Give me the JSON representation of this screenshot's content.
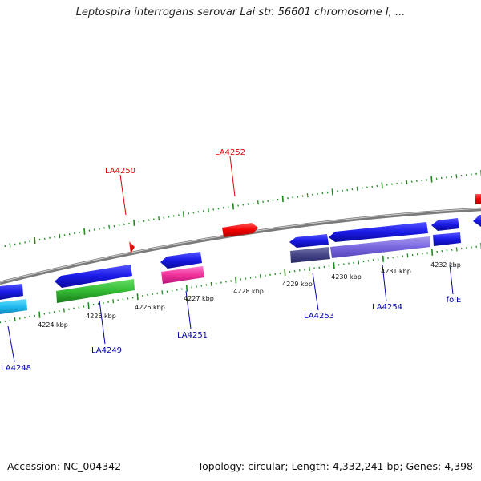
{
  "title": "Leptospira interrogans serovar Lai str. 56601 chromosome I, ...",
  "accession": "Accession: NC_004342",
  "topology": "Topology: circular; Length: 4,332,241 bp; Genes: 4,398",
  "kbp_ticks": [
    "4224 kbp",
    "4225 kbp",
    "4226 kbp",
    "4227 kbp",
    "4228 kbp",
    "4229 kbp",
    "4230 kbp",
    "4231 kbp",
    "4232 kbp"
  ],
  "gene_labels": [
    "LA4248",
    "LA4249",
    "LA4250",
    "LA4251",
    "LA4252",
    "LA4253",
    "LA4254",
    "folE"
  ],
  "colors": {
    "backbone": "#7a7a7a",
    "tick": "#1a8a1a",
    "forward_label": "#dd0000",
    "reverse_label": "#0000aa",
    "blue_gene": "#1a1ae6",
    "red_gene": "#ee0000",
    "pink_gene": "#ee3399",
    "green_gene": "#33bb33",
    "cyan_gene": "#22bbee",
    "navy_gene": "#444488",
    "lavender_gene": "#7766dd"
  }
}
